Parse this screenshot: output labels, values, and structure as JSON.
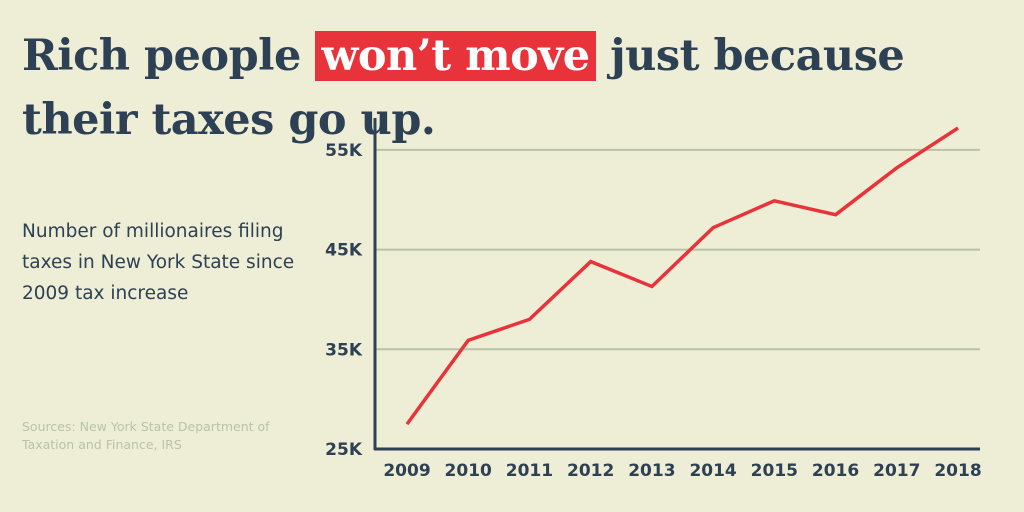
{
  "headline": {
    "before": "Rich people ",
    "highlight": "won’t move",
    "after": " just because their taxes go up."
  },
  "subtitle": "Number of millionaires filing taxes in New York State since 2009 tax increase",
  "source": "Sources: New York State Department of Taxation and Finance, IRS",
  "colors": {
    "background": "#eeeed6",
    "text": "#2e4054",
    "accent": "#e8333a",
    "grid": "#b9c2a6",
    "source": "#b7c4a6"
  },
  "chart_data": {
    "type": "line",
    "title": "",
    "xlabel": "",
    "ylabel": "",
    "categories": [
      "2009",
      "2010",
      "2011",
      "2012",
      "2013",
      "2014",
      "2015",
      "2016",
      "2017",
      "2018"
    ],
    "series": [
      {
        "values": [
          27500,
          35900,
          38000,
          43800,
          41300,
          47200,
          49900,
          48500,
          53200,
          57200
        ]
      }
    ],
    "yticks": [
      25000,
      35000,
      45000,
      55000
    ],
    "ytick_labels": [
      "25K",
      "35K",
      "45K",
      "55K"
    ],
    "ylim": [
      25000,
      58200
    ],
    "grid": true,
    "grid_axis": "y"
  }
}
